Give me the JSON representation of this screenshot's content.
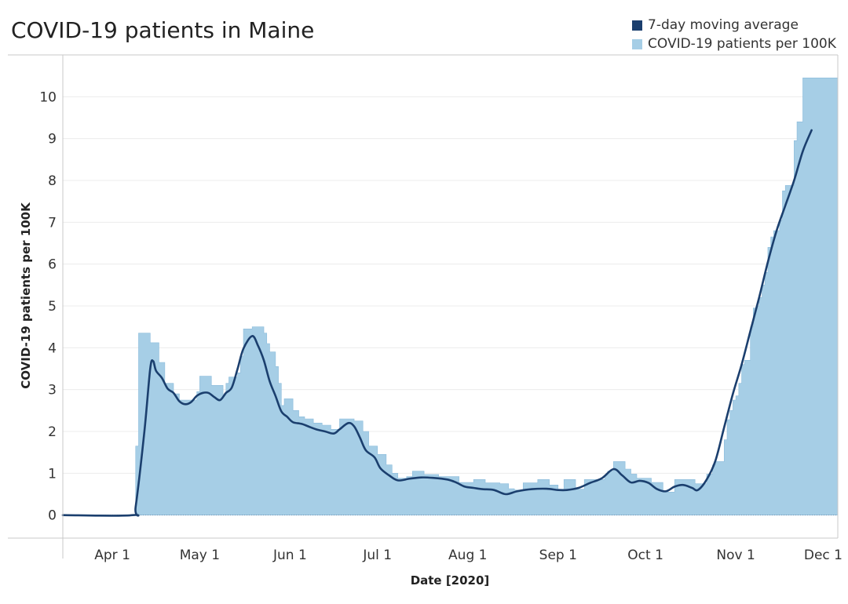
{
  "chart_data": {
    "type": "area",
    "title": "COVID-19 patients in Maine",
    "xlabel": "Date [2020]",
    "ylabel": "COVID-19 patients per 100K",
    "x_start": "2020-03-15",
    "x_end": "2020-12-06",
    "xlim": [
      "2020-03-15",
      "2020-12-06"
    ],
    "ylim": [
      -0.55,
      11.0
    ],
    "yticks": [
      0,
      1,
      2,
      3,
      4,
      5,
      6,
      7,
      8,
      9,
      10
    ],
    "xticks": [
      {
        "label": "Apr 1",
        "date": "2020-04-01"
      },
      {
        "label": "May 1",
        "date": "2020-05-01"
      },
      {
        "label": "Jun 1",
        "date": "2020-06-01"
      },
      {
        "label": "Jul 1",
        "date": "2020-07-01"
      },
      {
        "label": "Aug 1",
        "date": "2020-08-01"
      },
      {
        "label": "Sep 1",
        "date": "2020-09-01"
      },
      {
        "label": "Oct 1",
        "date": "2020-10-01"
      },
      {
        "label": "Nov 1",
        "date": "2020-11-01"
      },
      {
        "label": "Dec 1",
        "date": "2020-12-01"
      }
    ],
    "grid": true,
    "legend_position": "top-right",
    "series": [
      {
        "name": "COVID-19 patients per 100K",
        "color": "#a6cee6",
        "render": "step-area",
        "points": [
          [
            "2020-03-15",
            0
          ],
          [
            "2020-04-08",
            0
          ],
          [
            "2020-04-09",
            1.65
          ],
          [
            "2020-04-10",
            4.35
          ],
          [
            "2020-04-14",
            4.12
          ],
          [
            "2020-04-17",
            3.65
          ],
          [
            "2020-04-19",
            3.15
          ],
          [
            "2020-04-22",
            2.9
          ],
          [
            "2020-04-24",
            2.75
          ],
          [
            "2020-04-27",
            2.75
          ],
          [
            "2020-04-30",
            2.95
          ],
          [
            "2020-05-01",
            3.32
          ],
          [
            "2020-05-05",
            3.1
          ],
          [
            "2020-05-09",
            2.85
          ],
          [
            "2020-05-10",
            3.15
          ],
          [
            "2020-05-11",
            3.3
          ],
          [
            "2020-05-14",
            3.4
          ],
          [
            "2020-05-15",
            3.8
          ],
          [
            "2020-05-16",
            4.45
          ],
          [
            "2020-05-19",
            4.5
          ],
          [
            "2020-05-23",
            4.35
          ],
          [
            "2020-05-24",
            4.1
          ],
          [
            "2020-05-25",
            3.9
          ],
          [
            "2020-05-27",
            3.55
          ],
          [
            "2020-05-28",
            3.15
          ],
          [
            "2020-05-29",
            2.62
          ],
          [
            "2020-05-30",
            2.78
          ],
          [
            "2020-06-02",
            2.5
          ],
          [
            "2020-06-04",
            2.35
          ],
          [
            "2020-06-06",
            2.3
          ],
          [
            "2020-06-09",
            2.2
          ],
          [
            "2020-06-12",
            2.15
          ],
          [
            "2020-06-15",
            2.05
          ],
          [
            "2020-06-18",
            2.3
          ],
          [
            "2020-06-23",
            2.25
          ],
          [
            "2020-06-26",
            2.0
          ],
          [
            "2020-06-28",
            1.65
          ],
          [
            "2020-07-01",
            1.45
          ],
          [
            "2020-07-04",
            1.2
          ],
          [
            "2020-07-06",
            1.0
          ],
          [
            "2020-07-08",
            0.88
          ],
          [
            "2020-07-11",
            0.92
          ],
          [
            "2020-07-13",
            1.05
          ],
          [
            "2020-07-17",
            0.97
          ],
          [
            "2020-07-22",
            0.92
          ],
          [
            "2020-07-29",
            0.78
          ],
          [
            "2020-08-03",
            0.85
          ],
          [
            "2020-08-07",
            0.77
          ],
          [
            "2020-08-12",
            0.75
          ],
          [
            "2020-08-15",
            0.63
          ],
          [
            "2020-08-17",
            0.6
          ],
          [
            "2020-08-20",
            0.77
          ],
          [
            "2020-08-25",
            0.85
          ],
          [
            "2020-08-29",
            0.72
          ],
          [
            "2020-09-01",
            0.62
          ],
          [
            "2020-09-03",
            0.85
          ],
          [
            "2020-09-07",
            0.62
          ],
          [
            "2020-09-10",
            0.85
          ],
          [
            "2020-09-17",
            0.95
          ],
          [
            "2020-09-18",
            1.05
          ],
          [
            "2020-09-20",
            1.28
          ],
          [
            "2020-09-24",
            1.1
          ],
          [
            "2020-09-26",
            0.98
          ],
          [
            "2020-09-28",
            0.88
          ],
          [
            "2020-10-03",
            0.78
          ],
          [
            "2020-10-07",
            0.55
          ],
          [
            "2020-10-11",
            0.85
          ],
          [
            "2020-10-18",
            0.75
          ],
          [
            "2020-10-22",
            0.98
          ],
          [
            "2020-10-24",
            1.2
          ],
          [
            "2020-10-25",
            1.28
          ],
          [
            "2020-10-28",
            1.8
          ],
          [
            "2020-10-29",
            2.28
          ],
          [
            "2020-10-30",
            2.5
          ],
          [
            "2020-10-31",
            2.75
          ],
          [
            "2020-11-01",
            2.85
          ],
          [
            "2020-11-02",
            3.15
          ],
          [
            "2020-11-03",
            3.6
          ],
          [
            "2020-11-04",
            3.7
          ],
          [
            "2020-11-06",
            4.5
          ],
          [
            "2020-11-07",
            4.95
          ],
          [
            "2020-11-08",
            5.0
          ],
          [
            "2020-11-09",
            5.2
          ],
          [
            "2020-11-10",
            5.5
          ],
          [
            "2020-11-11",
            5.8
          ],
          [
            "2020-11-12",
            6.4
          ],
          [
            "2020-11-13",
            6.65
          ],
          [
            "2020-11-14",
            6.8
          ],
          [
            "2020-11-16",
            7.05
          ],
          [
            "2020-11-17",
            7.75
          ],
          [
            "2020-11-18",
            7.88
          ],
          [
            "2020-11-21",
            8.95
          ],
          [
            "2020-11-22",
            9.4
          ],
          [
            "2020-11-24",
            10.45
          ],
          [
            "2020-11-27",
            10.45
          ]
        ]
      },
      {
        "name": "7-day moving average",
        "color": "#1b3f6e",
        "render": "line",
        "points": [
          [
            "2020-03-15",
            0
          ],
          [
            "2020-04-08",
            0
          ],
          [
            "2020-04-09",
            0.2
          ],
          [
            "2020-04-12",
            2.0
          ],
          [
            "2020-04-14",
            3.5
          ],
          [
            "2020-04-15",
            3.68
          ],
          [
            "2020-04-16",
            3.45
          ],
          [
            "2020-04-18",
            3.28
          ],
          [
            "2020-04-20",
            3.02
          ],
          [
            "2020-04-22",
            2.92
          ],
          [
            "2020-04-24",
            2.72
          ],
          [
            "2020-04-26",
            2.65
          ],
          [
            "2020-04-28",
            2.7
          ],
          [
            "2020-04-30",
            2.85
          ],
          [
            "2020-05-02",
            2.92
          ],
          [
            "2020-05-04",
            2.92
          ],
          [
            "2020-05-06",
            2.82
          ],
          [
            "2020-05-08",
            2.75
          ],
          [
            "2020-05-10",
            2.92
          ],
          [
            "2020-05-12",
            3.05
          ],
          [
            "2020-05-14",
            3.5
          ],
          [
            "2020-05-16",
            3.98
          ],
          [
            "2020-05-19",
            4.28
          ],
          [
            "2020-05-21",
            4.05
          ],
          [
            "2020-05-23",
            3.7
          ],
          [
            "2020-05-25",
            3.2
          ],
          [
            "2020-05-27",
            2.85
          ],
          [
            "2020-05-29",
            2.48
          ],
          [
            "2020-05-31",
            2.35
          ],
          [
            "2020-06-02",
            2.22
          ],
          [
            "2020-06-05",
            2.18
          ],
          [
            "2020-06-08",
            2.1
          ],
          [
            "2020-06-10",
            2.05
          ],
          [
            "2020-06-13",
            2.0
          ],
          [
            "2020-06-16",
            1.95
          ],
          [
            "2020-06-18",
            2.05
          ],
          [
            "2020-06-21",
            2.2
          ],
          [
            "2020-06-23",
            2.12
          ],
          [
            "2020-06-25",
            1.85
          ],
          [
            "2020-06-27",
            1.55
          ],
          [
            "2020-06-30",
            1.38
          ],
          [
            "2020-07-02",
            1.12
          ],
          [
            "2020-07-05",
            0.95
          ],
          [
            "2020-07-08",
            0.83
          ],
          [
            "2020-07-12",
            0.87
          ],
          [
            "2020-07-16",
            0.9
          ],
          [
            "2020-07-20",
            0.89
          ],
          [
            "2020-07-25",
            0.85
          ],
          [
            "2020-07-28",
            0.78
          ],
          [
            "2020-07-31",
            0.68
          ],
          [
            "2020-08-03",
            0.65
          ],
          [
            "2020-08-06",
            0.62
          ],
          [
            "2020-08-10",
            0.6
          ],
          [
            "2020-08-14",
            0.5
          ],
          [
            "2020-08-18",
            0.57
          ],
          [
            "2020-08-23",
            0.62
          ],
          [
            "2020-08-28",
            0.63
          ],
          [
            "2020-09-01",
            0.6
          ],
          [
            "2020-09-04",
            0.6
          ],
          [
            "2020-09-08",
            0.65
          ],
          [
            "2020-09-12",
            0.77
          ],
          [
            "2020-09-16",
            0.88
          ],
          [
            "2020-09-20",
            1.1
          ],
          [
            "2020-09-23",
            0.95
          ],
          [
            "2020-09-26",
            0.78
          ],
          [
            "2020-09-29",
            0.82
          ],
          [
            "2020-10-02",
            0.77
          ],
          [
            "2020-10-05",
            0.62
          ],
          [
            "2020-10-08",
            0.57
          ],
          [
            "2020-10-11",
            0.68
          ],
          [
            "2020-10-14",
            0.72
          ],
          [
            "2020-10-17",
            0.65
          ],
          [
            "2020-10-19",
            0.6
          ],
          [
            "2020-10-22",
            0.85
          ],
          [
            "2020-10-25",
            1.3
          ],
          [
            "2020-10-28",
            2.1
          ],
          [
            "2020-10-31",
            2.9
          ],
          [
            "2020-11-03",
            3.6
          ],
          [
            "2020-11-06",
            4.4
          ],
          [
            "2020-11-09",
            5.2
          ],
          [
            "2020-11-12",
            6.05
          ],
          [
            "2020-11-15",
            6.8
          ],
          [
            "2020-11-18",
            7.4
          ],
          [
            "2020-11-21",
            8.0
          ],
          [
            "2020-11-24",
            8.7
          ],
          [
            "2020-11-27",
            9.2
          ]
        ]
      }
    ]
  }
}
